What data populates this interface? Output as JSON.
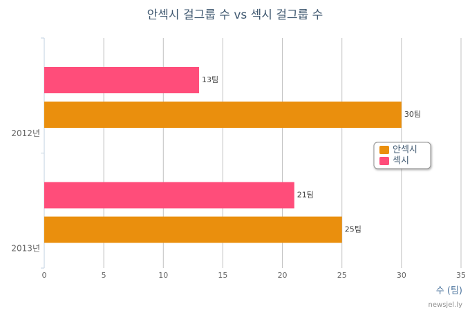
{
  "chart_data": {
    "type": "bar",
    "orientation": "horizontal",
    "title": "안섹시 걸그룹 수 vs 섹시 걸그룹 수",
    "categories": [
      "2012년",
      "2013년"
    ],
    "series": [
      {
        "name": "안섹시",
        "color": "#ea8f0d",
        "values": [
          30,
          25
        ],
        "value_labels": [
          "30팀",
          "25팀"
        ]
      },
      {
        "name": "섹시",
        "color": "#ff4d7a",
        "values": [
          13,
          21
        ],
        "value_labels": [
          "13팀",
          "21팀"
        ]
      }
    ],
    "x_label": "수 (팀)",
    "credit": "newsjel.ly",
    "xlim": [
      0,
      35
    ],
    "xticks": [
      0,
      5,
      10,
      15,
      20,
      25,
      30,
      35
    ],
    "grid": true,
    "legend": "right"
  }
}
